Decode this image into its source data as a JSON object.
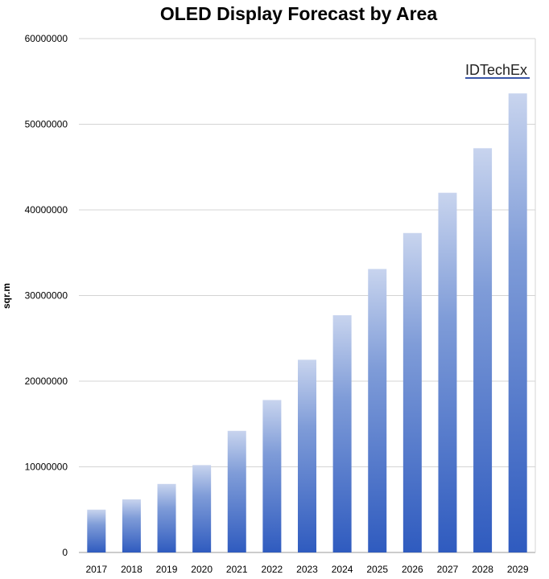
{
  "chart_data": {
    "type": "bar",
    "title": "OLED Display Forecast by Area",
    "xlabel": "",
    "ylabel": "sqr.m",
    "categories": [
      "2017",
      "2018",
      "2019",
      "2020",
      "2021",
      "2022",
      "2023",
      "2024",
      "2025",
      "2026",
      "2027",
      "2028",
      "2029"
    ],
    "values": [
      5000000,
      6200000,
      8000000,
      10200000,
      14200000,
      17800000,
      22500000,
      27700000,
      33100000,
      37300000,
      42000000,
      47200000,
      53600000
    ],
    "ylim": [
      0,
      60000000
    ],
    "yticks": [
      "0",
      "10000000",
      "20000000",
      "30000000",
      "40000000",
      "50000000",
      "60000000"
    ],
    "grid": true,
    "bar_color_top": "#c8d4ee",
    "bar_color_bottom": "#2f5bbf",
    "brand_label": "IDTechEx",
    "brand_underline_color": "#3a56a8"
  }
}
